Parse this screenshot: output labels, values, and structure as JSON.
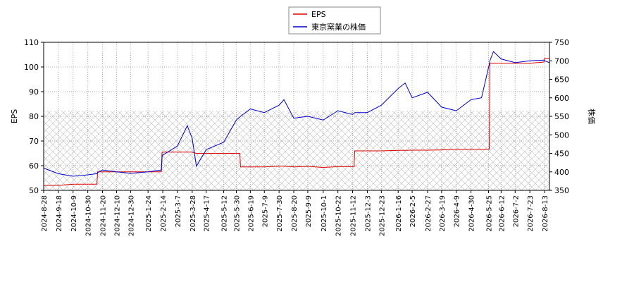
{
  "chart_data": {
    "type": "line",
    "x": [
      "2024-8-28",
      "2024-9-18",
      "2024-10-9",
      "2024-10-30",
      "2024-11-12",
      "2024-11-13",
      "2024-11-20",
      "2024-12-10",
      "2024-12-30",
      "2025-1-24",
      "2025-2-12",
      "2025-2-13",
      "2025-2-14",
      "2025-3-7",
      "2025-3-21",
      "2025-3-28",
      "2025-4-3",
      "2025-4-17",
      "2025-5-12",
      "2025-5-30",
      "2025-6-4",
      "2025-6-5",
      "2025-6-19",
      "2025-7-9",
      "2025-7-30",
      "2025-8-6",
      "2025-8-20",
      "2025-9-9",
      "2025-10-1",
      "2025-10-22",
      "2025-11-12",
      "2025-11-14",
      "2025-11-15",
      "2025-12-3",
      "2025-12-23",
      "2026-1-16",
      "2026-1-26",
      "2026-2-5",
      "2026-2-27",
      "2026-3-19",
      "2026-4-9",
      "2026-4-30",
      "2026-5-15",
      "2026-5-26",
      "2026-5-27",
      "2026-6-1",
      "2026-6-12",
      "2026-7-2",
      "2026-7-23",
      "2026-8-12",
      "2026-8-13",
      "2026-8-20"
    ],
    "series": [
      {
        "name": "EPS",
        "color": "#dd0000",
        "values": [
          52,
          52,
          52.5,
          52.5,
          52.5,
          57.5,
          57.5,
          57.5,
          57.5,
          57.5,
          57.5,
          65.5,
          65.5,
          65.5,
          65.5,
          65.5,
          65,
          65,
          65,
          65,
          65,
          59.5,
          59.5,
          59.5,
          59.8,
          59.8,
          59.5,
          59.7,
          59.3,
          59.6,
          59.6,
          59.6,
          66,
          66,
          66,
          66.2,
          66.2,
          66.3,
          66.3,
          66.4,
          66.6,
          66.6,
          66.6,
          66.6,
          101.5,
          101.5,
          101.5,
          101.5,
          101.5,
          102,
          103.5,
          103.5
        ]
      },
      {
        "name": "東京窯業の株価",
        "color": "#0000cc",
        "axis": "y2",
        "values": [
          410,
          395,
          388,
          392,
          395,
          398,
          405,
          400,
          396,
          400,
          405,
          440,
          445,
          470,
          525,
          490,
          415,
          460,
          480,
          540,
          548,
          550,
          570,
          560,
          580,
          595,
          545,
          550,
          540,
          565,
          555,
          558,
          560,
          560,
          580,
          625,
          640,
          600,
          615,
          575,
          565,
          595,
          600,
          690,
          700,
          725,
          705,
          695,
          700,
          702,
          700,
          695
        ]
      }
    ],
    "xlim": [
      "2024-8-28",
      "2026-8-20"
    ],
    "xticks": [
      "2024-8-28",
      "2024-9-18",
      "2024-10-9",
      "2024-10-30",
      "2024-11-20",
      "2024-12-10",
      "2024-12-30",
      "2025-1-24",
      "2025-2-14",
      "2025-3-7",
      "2025-3-28",
      "2025-4-17",
      "2025-5-12",
      "2025-5-30",
      "2025-6-19",
      "2025-7-9",
      "2025-7-30",
      "2025-8-20",
      "2025-9-9",
      "2025-10-1",
      "2025-10-22",
      "2025-11-12",
      "2025-12-3",
      "2025-12-23",
      "2026-1-16",
      "2026-2-5",
      "2026-2-27",
      "2026-3-19",
      "2026-4-9",
      "2026-4-30",
      "2026-5-25",
      "2026-6-12",
      "2026-7-2",
      "2026-7-23",
      "2026-8-13"
    ],
    "ylabel": "EPS",
    "ylim": [
      50,
      110
    ],
    "yticks": [
      50,
      60,
      70,
      80,
      90,
      100,
      110
    ],
    "y2label": "株価",
    "y2lim": [
      350,
      750
    ],
    "y2ticks": [
      350,
      400,
      450,
      500,
      550,
      600,
      650,
      700,
      750
    ],
    "grid": true,
    "legend": "top"
  }
}
